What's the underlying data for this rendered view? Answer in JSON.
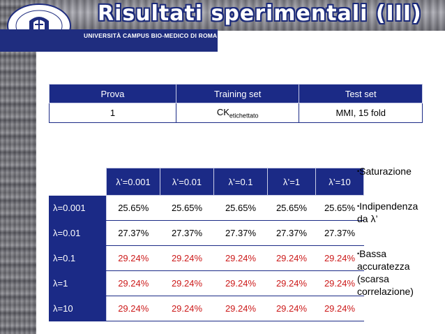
{
  "slide": {
    "title": "Risultati sperimentali (III)",
    "university": "UNIVERSITÀ CAMPUS BIO-MEDICO DI ROMA",
    "seal_text": [
      "UNIVERSITÀ CAMPUS BIO-MEDICO",
      "DI ROMA"
    ]
  },
  "table1": {
    "headers": [
      "Prova",
      "Training set",
      "Test set"
    ],
    "row": {
      "prova": "1",
      "training_main": "CK",
      "training_sub": "etichettato",
      "test": "MMI, 15 fold"
    }
  },
  "table2": {
    "col_headers": [
      "λ’=0.001",
      "λ’=0.01",
      "λ’=0.1",
      "λ’=1",
      "λ’=10"
    ],
    "rows": [
      {
        "label": "λ=0.001",
        "values": [
          "25.65%",
          "25.65%",
          "25.65%",
          "25.65%",
          "25.65%"
        ]
      },
      {
        "label": "λ=0.01",
        "values": [
          "27.37%",
          "27.37%",
          "27.37%",
          "27.37%",
          "27.37%"
        ]
      },
      {
        "label": "λ=0.1",
        "values": [
          "29.24%",
          "29.24%",
          "29.24%",
          "29.24%",
          "29.24%"
        ]
      },
      {
        "label": "λ=1",
        "values": [
          "29.24%",
          "29.24%",
          "29.24%",
          "29.24%",
          "29.24%"
        ]
      },
      {
        "label": "λ=10",
        "values": [
          "29.24%",
          "29.24%",
          "29.24%",
          "29.24%",
          "29.24%"
        ]
      }
    ]
  },
  "notes": [
    {
      "line1": "Saturazione",
      "line2": ""
    },
    {
      "line1": "Indipendenza",
      "line2": "da λ’"
    },
    {
      "line1": "Bassa",
      "line2": "accuratezza",
      "line3": "(scarsa",
      "line4": "correlazione)"
    }
  ],
  "colors": {
    "header_blue": "#1b2a86",
    "highlight_red": "#cc1a1a"
  }
}
